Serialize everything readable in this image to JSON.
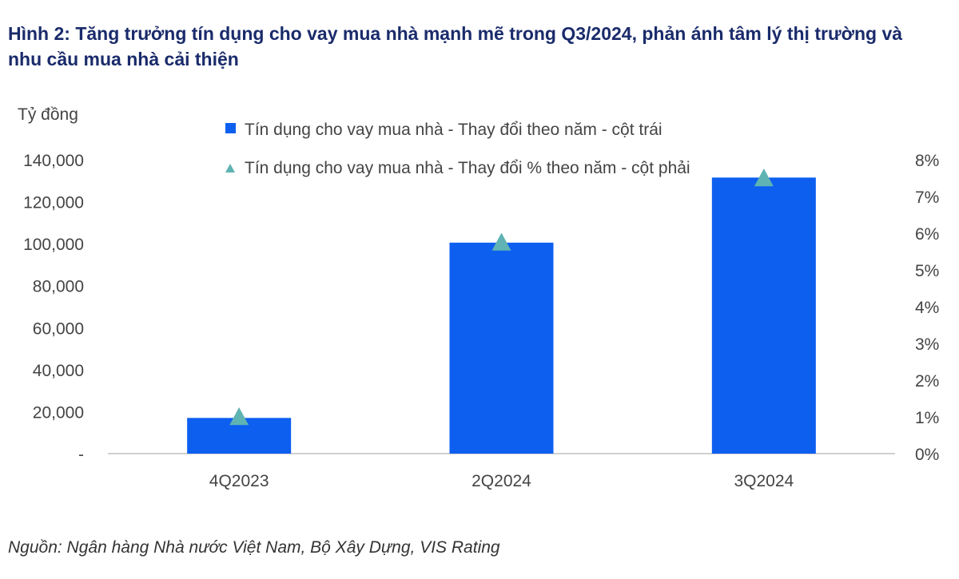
{
  "title": "Hình 2: Tăng trưởng tín dụng cho vay mua nhà mạnh mẽ trong Q3/2024, phản ánh tâm lý thị trường và nhu cầu mua nhà cải thiện",
  "source": "Nguồn: Ngân hàng Nhà nước Việt Nam, Bộ Xây Dựng, VIS Rating",
  "colors": {
    "bar": "#0d5ff0",
    "marker": "#5fb3b3",
    "axis": "#d0d0d0"
  },
  "chart_data": {
    "type": "bar",
    "categories": [
      "4Q2023",
      "2Q2024",
      "3Q2024"
    ],
    "ylabel": "Tỷ đồng",
    "ylim": [
      0,
      140000
    ],
    "y_ticks": [
      "-",
      "20,000",
      "40,000",
      "60,000",
      "80,000",
      "100,000",
      "120,000",
      "140,000"
    ],
    "y2lim": [
      0,
      8
    ],
    "y2_ticks": [
      "0%",
      "1%",
      "2%",
      "3%",
      "4%",
      "5%",
      "6%",
      "7%",
      "8%"
    ],
    "grid": false,
    "legend_position": "top",
    "series": [
      {
        "name": "Tín dụng cho vay mua nhà - Thay đổi theo năm - cột trái",
        "kind": "bar",
        "axis": "left",
        "values": [
          17000,
          100500,
          131500
        ]
      },
      {
        "name": "Tín dụng cho vay mua nhà - Thay đổi % theo năm - cột phải",
        "kind": "marker",
        "marker": "triangle",
        "axis": "right",
        "values": [
          1.0,
          5.75,
          7.5
        ]
      }
    ]
  }
}
